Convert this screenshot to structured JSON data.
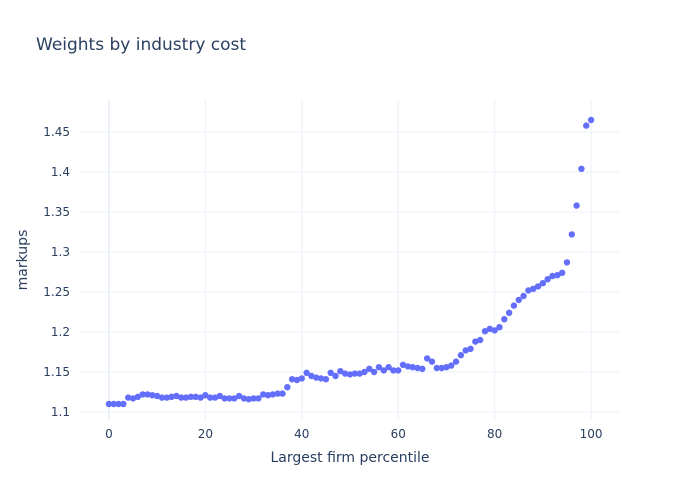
{
  "chart_data": {
    "type": "scatter",
    "title": "Weights by industry cost",
    "xlabel": "Largest firm percentile",
    "ylabel": "markups",
    "xlim": [
      -6,
      106
    ],
    "ylim": [
      1.09,
      1.49
    ],
    "xticks": [
      0,
      20,
      40,
      60,
      80,
      100
    ],
    "yticks": [
      1.1,
      1.15,
      1.2,
      1.25,
      1.3,
      1.35,
      1.4,
      1.45
    ],
    "ytick_labels": [
      "1.1",
      "1.15",
      "1.2",
      "1.25",
      "1.3",
      "1.35",
      "1.4",
      "1.45"
    ],
    "grid": true,
    "marker_color": "#636efa",
    "x": [
      0,
      1,
      2,
      3,
      4,
      5,
      6,
      7,
      8,
      9,
      10,
      11,
      12,
      13,
      14,
      15,
      16,
      17,
      18,
      19,
      20,
      21,
      22,
      23,
      24,
      25,
      26,
      27,
      28,
      29,
      30,
      31,
      32,
      33,
      34,
      35,
      36,
      37,
      38,
      39,
      40,
      41,
      42,
      43,
      44,
      45,
      46,
      47,
      48,
      49,
      50,
      51,
      52,
      53,
      54,
      55,
      56,
      57,
      58,
      59,
      60,
      61,
      62,
      63,
      64,
      65,
      66,
      67,
      68,
      69,
      70,
      71,
      72,
      73,
      74,
      75,
      76,
      77,
      78,
      79,
      80,
      81,
      82,
      83,
      84,
      85,
      86,
      87,
      88,
      89,
      90,
      91,
      92,
      93,
      94,
      95,
      96,
      97,
      98,
      99,
      100
    ],
    "y": [
      1.11,
      1.11,
      1.11,
      1.11,
      1.118,
      1.117,
      1.119,
      1.122,
      1.122,
      1.121,
      1.12,
      1.118,
      1.118,
      1.119,
      1.12,
      1.118,
      1.118,
      1.119,
      1.119,
      1.118,
      1.121,
      1.118,
      1.118,
      1.12,
      1.117,
      1.117,
      1.117,
      1.12,
      1.117,
      1.116,
      1.117,
      1.117,
      1.122,
      1.121,
      1.122,
      1.123,
      1.123,
      1.131,
      1.141,
      1.14,
      1.142,
      1.149,
      1.145,
      1.143,
      1.142,
      1.141,
      1.149,
      1.145,
      1.151,
      1.148,
      1.147,
      1.148,
      1.148,
      1.15,
      1.154,
      1.15,
      1.156,
      1.152,
      1.156,
      1.152,
      1.152,
      1.159,
      1.157,
      1.156,
      1.155,
      1.154,
      1.167,
      1.163,
      1.155,
      1.155,
      1.156,
      1.158,
      1.163,
      1.171,
      1.177,
      1.179,
      1.188,
      1.19,
      1.201,
      1.204,
      1.202,
      1.206,
      1.216,
      1.224,
      1.233,
      1.24,
      1.245,
      1.252,
      1.254,
      1.257,
      1.261,
      1.266,
      1.27,
      1.271,
      1.274,
      1.287,
      1.322,
      1.358,
      1.404,
      1.458,
      1.465
    ]
  }
}
